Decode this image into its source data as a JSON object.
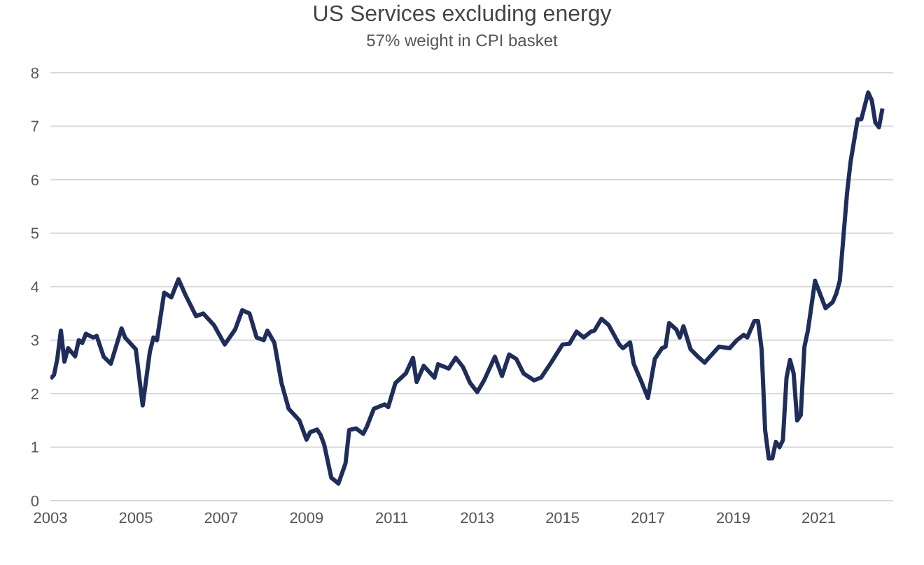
{
  "chart_data": {
    "type": "line",
    "title": "US Services excluding energy",
    "subtitle": "57% weight in CPI basket",
    "x": [
      "2003-01",
      "2003-02",
      "2003-03",
      "2003-04",
      "2003-05",
      "2003-06",
      "2003-08",
      "2003-09",
      "2003-10",
      "2003-11",
      "2004-01",
      "2004-02",
      "2004-04",
      "2004-06",
      "2004-09",
      "2004-10",
      "2005-01",
      "2005-03",
      "2005-05",
      "2005-06",
      "2005-07",
      "2005-09",
      "2005-11",
      "2006-01",
      "2006-03",
      "2006-06",
      "2006-08",
      "2006-11",
      "2007-02",
      "2007-05",
      "2007-07",
      "2007-09",
      "2007-11",
      "2008-01",
      "2008-02",
      "2008-04",
      "2008-06",
      "2008-08",
      "2008-11",
      "2009-01",
      "2009-02",
      "2009-04",
      "2009-05",
      "2009-06",
      "2009-08",
      "2009-10",
      "2009-12",
      "2010-01",
      "2010-03",
      "2010-05",
      "2010-06",
      "2010-08",
      "2010-11",
      "2010-12",
      "2011-02",
      "2011-05",
      "2011-07",
      "2011-08",
      "2011-10",
      "2012-01",
      "2012-02",
      "2012-05",
      "2012-07",
      "2012-09",
      "2012-11",
      "2013-01",
      "2013-03",
      "2013-06",
      "2013-08",
      "2013-10",
      "2013-12",
      "2014-02",
      "2014-05",
      "2014-07",
      "2014-10",
      "2015-01",
      "2015-03",
      "2015-05",
      "2015-07",
      "2015-09",
      "2015-10",
      "2015-12",
      "2016-02",
      "2016-05",
      "2016-06",
      "2016-08",
      "2016-09",
      "2016-11",
      "2017-01",
      "2017-03",
      "2017-05",
      "2017-06",
      "2017-07",
      "2017-09",
      "2017-10",
      "2017-11",
      "2018-01",
      "2018-03",
      "2018-05",
      "2018-07",
      "2018-09",
      "2018-12",
      "2019-02",
      "2019-04",
      "2019-05",
      "2019-07",
      "2019-08",
      "2019-09",
      "2019-10",
      "2019-11",
      "2019-12",
      "2020-01",
      "2020-02",
      "2020-03",
      "2020-04",
      "2020-05",
      "2020-06",
      "2020-07",
      "2020-08",
      "2020-09",
      "2020-10",
      "2020-12",
      "2021-03",
      "2021-05",
      "2021-06",
      "2021-07",
      "2021-09",
      "2021-10",
      "2021-12",
      "2022-01",
      "2022-03",
      "2022-04",
      "2022-05",
      "2022-06",
      "2022-07"
    ],
    "series": [
      {
        "color": "#1f2d5a",
        "values": [
          2.28,
          2.35,
          2.65,
          3.18,
          2.6,
          2.85,
          2.7,
          3.0,
          2.95,
          3.12,
          3.05,
          3.08,
          2.69,
          2.56,
          3.22,
          3.05,
          2.83,
          1.78,
          2.78,
          3.05,
          3.0,
          3.89,
          3.8,
          4.14,
          3.85,
          3.45,
          3.5,
          3.28,
          2.92,
          3.2,
          3.56,
          3.5,
          3.05,
          3.0,
          3.18,
          2.95,
          2.2,
          1.72,
          1.5,
          1.14,
          1.28,
          1.33,
          1.23,
          1.05,
          0.43,
          0.32,
          0.7,
          1.32,
          1.35,
          1.25,
          1.38,
          1.72,
          1.8,
          1.75,
          2.2,
          2.38,
          2.67,
          2.22,
          2.52,
          2.3,
          2.55,
          2.47,
          2.67,
          2.5,
          2.2,
          2.03,
          2.25,
          2.69,
          2.33,
          2.73,
          2.65,
          2.38,
          2.25,
          2.3,
          2.6,
          2.92,
          2.93,
          3.16,
          3.05,
          3.16,
          3.18,
          3.4,
          3.28,
          2.92,
          2.85,
          2.96,
          2.56,
          2.25,
          1.92,
          2.65,
          2.85,
          2.88,
          3.32,
          3.2,
          3.05,
          3.26,
          2.83,
          2.7,
          2.58,
          2.73,
          2.88,
          2.85,
          3.0,
          3.1,
          3.05,
          3.36,
          3.36,
          2.83,
          1.32,
          0.79,
          0.79,
          1.1,
          1.0,
          1.13,
          2.3,
          2.63,
          2.38,
          1.5,
          1.6,
          2.87,
          3.18,
          4.11,
          3.6,
          3.71,
          3.87,
          4.11,
          5.75,
          6.33,
          7.13,
          7.13,
          7.63,
          7.48,
          7.07,
          6.98,
          7.33
        ]
      }
    ],
    "xlim": [
      "2003-01",
      "2022-10"
    ],
    "xticks": [
      "2003",
      "2005",
      "2007",
      "2009",
      "2011",
      "2013",
      "2015",
      "2017",
      "2019",
      "2021"
    ],
    "ylim": [
      0,
      8
    ],
    "yticks": [
      0,
      1,
      2,
      3,
      4,
      5,
      6,
      7,
      8
    ],
    "grid": "y",
    "line_style": "solid",
    "marker": "none"
  }
}
